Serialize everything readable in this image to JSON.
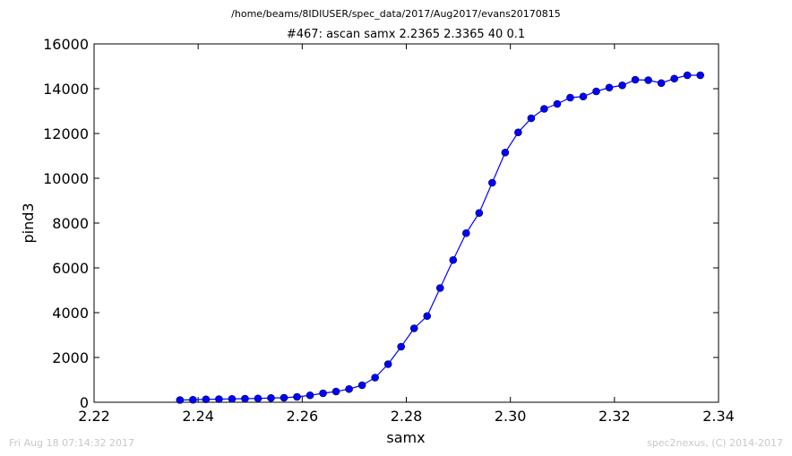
{
  "header": {
    "file_path": "/home/beams/8IDIUSER/spec_data/2017/Aug2017/evans20170815"
  },
  "footer": {
    "timestamp": "Fri Aug 18 07:14:32 2017",
    "credit": "spec2nexus, (C) 2014-2017"
  },
  "colors": {
    "series": "#0000ff",
    "axes": "#000000",
    "footer_text": "#c8c8c8"
  },
  "chart_data": {
    "type": "line",
    "title": "#467: ascan  samx 2.2365 2.3365  40 0.1",
    "xlabel": "samx",
    "ylabel": "pind3",
    "xlim": [
      2.22,
      2.34
    ],
    "ylim": [
      0,
      16000
    ],
    "xticks": [
      "2.22",
      "2.24",
      "2.26",
      "2.28",
      "2.30",
      "2.32",
      "2.34"
    ],
    "yticks": [
      "0",
      "2000",
      "4000",
      "6000",
      "8000",
      "10000",
      "12000",
      "14000",
      "16000"
    ],
    "grid": false,
    "marker": "circle",
    "series": [
      {
        "x": [
          2.2365,
          2.239,
          2.2415,
          2.244,
          2.2465,
          2.249,
          2.2515,
          2.254,
          2.2565,
          2.259,
          2.2615,
          2.264,
          2.2665,
          2.269,
          2.2715,
          2.274,
          2.2765,
          2.279,
          2.2815,
          2.284,
          2.2865,
          2.289,
          2.2915,
          2.294,
          2.2965,
          2.299,
          2.3015,
          2.304,
          2.3065,
          2.309,
          2.3115,
          2.314,
          2.3165,
          2.319,
          2.3215,
          2.324,
          2.3265,
          2.329,
          2.3315,
          2.334,
          2.3365
        ],
        "y": [
          100,
          110,
          130,
          140,
          150,
          160,
          170,
          190,
          200,
          240,
          310,
          400,
          480,
          590,
          760,
          1100,
          1700,
          2480,
          3300,
          3850,
          5100,
          6350,
          7550,
          8450,
          9800,
          11150,
          12050,
          12680,
          13100,
          13320,
          13600,
          13650,
          13880,
          14050,
          14150,
          14400,
          14380,
          14250,
          14450,
          14600,
          14600
        ]
      }
    ]
  }
}
